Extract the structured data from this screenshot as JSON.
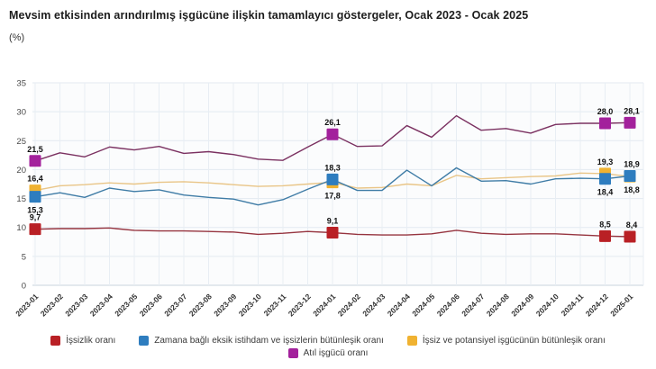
{
  "header": {
    "title": "Mevsim etkisinden arındırılmış işgücüne ilişkin tamamlayıcı göstergeler, Ocak 2023 - Ocak 2025",
    "subtitle": "(%)"
  },
  "chart_data": {
    "type": "line",
    "x": [
      "2023-01",
      "2023-02",
      "2023-03",
      "2023-04",
      "2023-05",
      "2023-06",
      "2023-07",
      "2023-08",
      "2023-09",
      "2023-10",
      "2023-11",
      "2023-12",
      "2024-01",
      "2024-02",
      "2024-03",
      "2024-04",
      "2024-05",
      "2024-06",
      "2024-07",
      "2024-08",
      "2024-09",
      "2024-10",
      "2024-11",
      "2024-12",
      "2025-01"
    ],
    "ylim": [
      0,
      35
    ],
    "y_ticks": [
      0,
      5,
      10,
      15,
      20,
      25,
      30,
      35
    ],
    "grid": true,
    "legend_position": "bottom",
    "series": [
      {
        "key": "issizlik-orani",
        "name": "İşsizlik oranı",
        "color": "#b92025",
        "line_color": "#96343f",
        "values": [
          9.7,
          9.8,
          9.8,
          9.9,
          9.5,
          9.4,
          9.4,
          9.3,
          9.2,
          8.8,
          9.0,
          9.3,
          9.1,
          8.8,
          8.7,
          8.7,
          8.9,
          9.5,
          9.0,
          8.8,
          8.9,
          8.9,
          8.7,
          8.5,
          8.4
        ],
        "annotations": [
          {
            "i": 0,
            "label": "9,7",
            "pos": "above"
          },
          {
            "i": 12,
            "label": "9,1",
            "pos": "above"
          },
          {
            "i": 23,
            "label": "8,5",
            "pos": "above"
          },
          {
            "i": 24,
            "label": "8,4",
            "pos": "above"
          }
        ]
      },
      {
        "key": "issiz-ve-potansiyel-isgucu-butunlesik-orani",
        "name": "İşsiz ve potansiyel işgücünün bütünleşik oranı",
        "color": "#f0b231",
        "line_color": "#e9c587",
        "values": [
          16.4,
          17.2,
          17.4,
          17.7,
          17.5,
          17.8,
          17.9,
          17.7,
          17.4,
          17.1,
          17.2,
          17.5,
          17.8,
          16.8,
          16.9,
          17.5,
          17.2,
          19.0,
          18.4,
          18.6,
          18.8,
          18.9,
          19.4,
          19.3,
          18.8
        ],
        "annotations": [
          {
            "i": 0,
            "label": "16,4",
            "pos": "above"
          },
          {
            "i": 12,
            "label": "17,8",
            "pos": "below"
          },
          {
            "i": 23,
            "label": "19,3",
            "pos": "above"
          },
          {
            "i": 24,
            "label": "18,8",
            "pos": "below"
          }
        ]
      },
      {
        "key": "zamana-bagli-eksik-istihdam-butunlesik-orani",
        "name": "Zamana bağlı eksik istihdam ve işsizlerin bütünleşik oranı",
        "color": "#2e7dbf",
        "line_color": "#3f7ca6",
        "values": [
          15.3,
          16.0,
          15.2,
          16.8,
          16.2,
          16.5,
          15.6,
          15.2,
          14.9,
          13.9,
          14.8,
          16.6,
          18.3,
          16.4,
          16.4,
          19.9,
          17.2,
          20.3,
          18.0,
          18.1,
          17.5,
          18.4,
          18.5,
          18.4,
          18.9
        ],
        "annotations": [
          {
            "i": 0,
            "label": "15,3",
            "pos": "below"
          },
          {
            "i": 12,
            "label": "18,3",
            "pos": "above"
          },
          {
            "i": 23,
            "label": "18,4",
            "pos": "below"
          },
          {
            "i": 24,
            "label": "18,9",
            "pos": "above"
          }
        ]
      },
      {
        "key": "atil-isgucu-orani",
        "name": "Atıl işgücü oranı",
        "color": "#a3219c",
        "line_color": "#7b3161",
        "values": [
          21.5,
          22.9,
          22.2,
          23.9,
          23.4,
          24.0,
          22.8,
          23.1,
          22.6,
          21.8,
          21.6,
          23.9,
          26.1,
          24.0,
          24.1,
          27.6,
          25.6,
          29.3,
          26.8,
          27.1,
          26.3,
          27.8,
          28.0,
          28.0,
          28.1
        ],
        "annotations": [
          {
            "i": 0,
            "label": "21,5",
            "pos": "above"
          },
          {
            "i": 12,
            "label": "26,1",
            "pos": "above"
          },
          {
            "i": 23,
            "label": "28,0",
            "pos": "above"
          },
          {
            "i": 24,
            "label": "28,1",
            "pos": "above"
          }
        ]
      }
    ]
  },
  "legend": {
    "items": [
      {
        "label": "İşsizlik oranı",
        "color": "#b92025"
      },
      {
        "label": "Zamana bağlı eksik istihdam ve işsizlerin bütünleşik oranı",
        "color": "#2e7dbf"
      },
      {
        "label": "İşsiz ve potansiyel işgücünün bütünleşik oranı",
        "color": "#f0b231"
      },
      {
        "label": "Atıl işgücü oranı",
        "color": "#a3219c"
      }
    ]
  }
}
